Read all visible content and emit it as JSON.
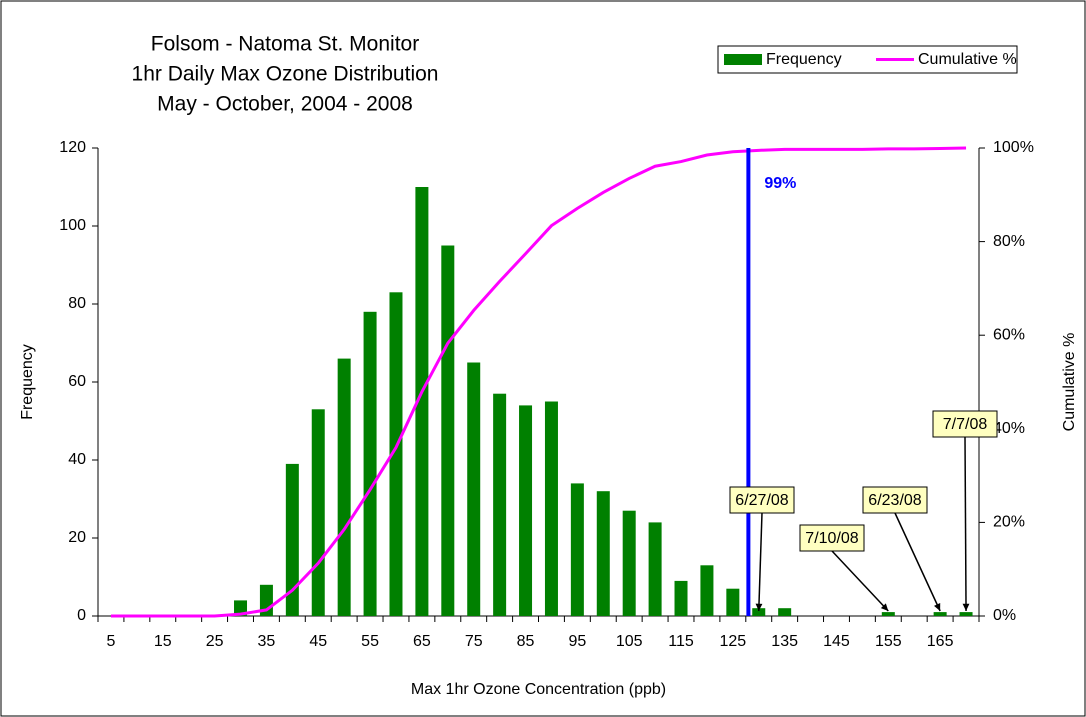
{
  "chart_data": {
    "type": "bar_line",
    "title": [
      "Folsom - Natoma St. Monitor",
      "1hr Daily Max Ozone Distribution",
      "May - October, 2004 - 2008"
    ],
    "x_label": "Max 1hr Ozone Concentration (ppb)",
    "y_label": "Frequency",
    "y2_label": "Cumulative %",
    "categories": [
      5,
      null,
      15,
      null,
      25,
      null,
      35,
      null,
      45,
      null,
      55,
      null,
      65,
      null,
      75,
      null,
      85,
      null,
      95,
      null,
      105,
      null,
      115,
      null,
      125,
      null,
      135,
      null,
      145,
      null,
      155,
      null,
      165,
      null
    ],
    "series": [
      {
        "name": "Frequency",
        "type": "bar",
        "color": "#008000",
        "values": [
          0,
          0,
          0,
          0,
          0,
          4,
          8,
          39,
          53,
          66,
          78,
          83,
          110,
          95,
          65,
          57,
          54,
          55,
          34,
          32,
          27,
          24,
          9,
          13,
          7,
          2,
          2,
          0,
          0,
          0,
          1,
          0,
          1,
          1
        ]
      },
      {
        "name": "Cumulative %",
        "type": "line",
        "axis": "y2",
        "color": "#ff00ff",
        "values": [
          0,
          0,
          0,
          0,
          0,
          0.4,
          1.3,
          5.5,
          11.3,
          18.5,
          27,
          36,
          47.9,
          58.3,
          65.3,
          71.5,
          77.4,
          83.4,
          87.1,
          90.5,
          93.5,
          96.1,
          97.1,
          98.5,
          99.2,
          99.5,
          99.7,
          99.7,
          99.7,
          99.7,
          99.8,
          99.8,
          99.9,
          100
        ]
      }
    ],
    "ylim": [
      0,
      120
    ],
    "yticks": [
      0,
      20,
      40,
      60,
      80,
      100,
      120
    ],
    "y2lim": [
      0,
      100
    ],
    "y2ticks": [
      {
        "value": 0,
        "label": "0%"
      },
      {
        "value": 20,
        "label": "20%"
      },
      {
        "value": 40,
        "label": "40%"
      },
      {
        "value": 60,
        "label": "60%"
      },
      {
        "value": 80,
        "label": "80%"
      },
      {
        "value": 100,
        "label": "100%"
      }
    ],
    "reference_line": {
      "x": 128,
      "label": "99%",
      "color": "#0000ff"
    },
    "annotations": [
      {
        "text": "6/27/08",
        "x": 130
      },
      {
        "text": "7/10/08",
        "x": 155
      },
      {
        "text": "6/23/08",
        "x": 165
      },
      {
        "text": "7/7/08",
        "x": 170
      }
    ],
    "legend": "top-right"
  }
}
